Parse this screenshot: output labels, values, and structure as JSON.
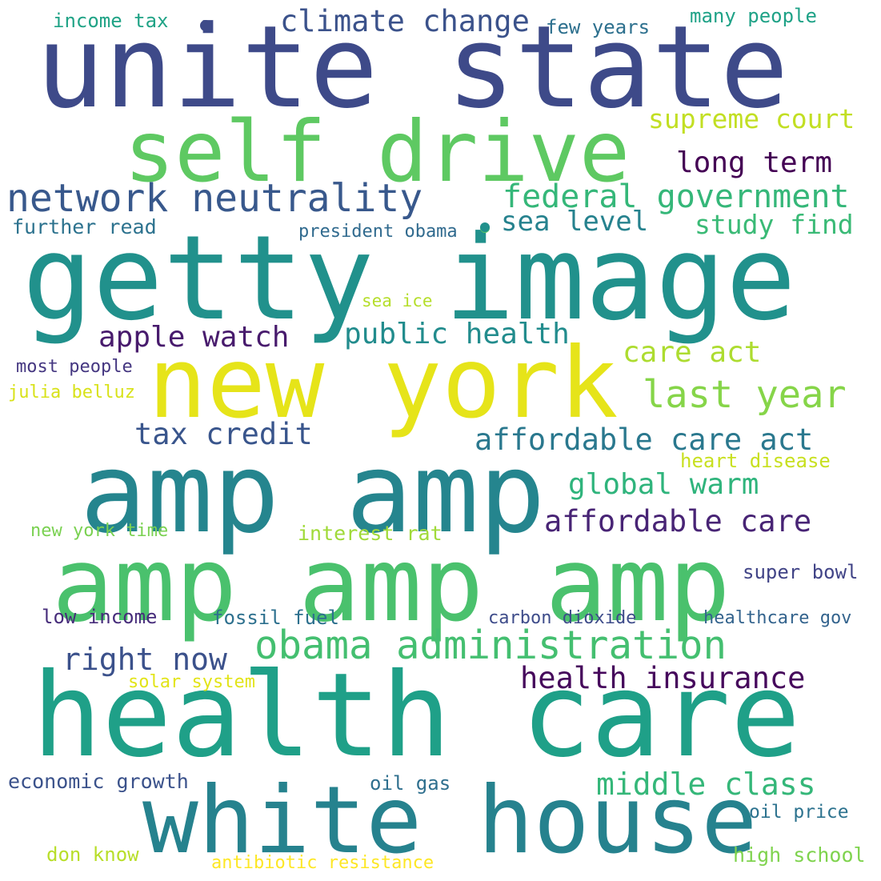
{
  "words": [
    {
      "text": "unite state",
      "color": "#3e4a89"
    },
    {
      "text": "self drive",
      "color": "#5ec962"
    },
    {
      "text": "getty image",
      "color": "#21918c"
    },
    {
      "text": "new york",
      "color": "#e6e419"
    },
    {
      "text": "amp amp",
      "color": "#25858e"
    },
    {
      "text": "amp amp amp",
      "color": "#4ac16d"
    },
    {
      "text": "health care",
      "color": "#1fa088"
    },
    {
      "text": "white house",
      "color": "#26828e"
    },
    {
      "text": "network neutrality",
      "color": "#38588c"
    },
    {
      "text": "climate change",
      "color": "#3b528b"
    },
    {
      "text": "federal government",
      "color": "#35b779"
    },
    {
      "text": "obama administration",
      "color": "#44bf70"
    },
    {
      "text": "affordable care act",
      "color": "#2a788e"
    },
    {
      "text": "last year",
      "color": "#86d549"
    },
    {
      "text": "supreme court",
      "color": "#c2df23"
    },
    {
      "text": "long term",
      "color": "#440154"
    },
    {
      "text": "sea level",
      "color": "#26828e"
    },
    {
      "text": "study find",
      "color": "#3aba76"
    },
    {
      "text": "public health",
      "color": "#228c8d"
    },
    {
      "text": "apple watch",
      "color": "#481b6d"
    },
    {
      "text": "care act",
      "color": "#addc30"
    },
    {
      "text": "tax credit",
      "color": "#39558c"
    },
    {
      "text": "global warm",
      "color": "#2fb47c"
    },
    {
      "text": "affordable care",
      "color": "#482475"
    },
    {
      "text": "right now",
      "color": "#3b518b"
    },
    {
      "text": "health insurance",
      "color": "#46085c"
    },
    {
      "text": "middle class",
      "color": "#35b779"
    },
    {
      "text": "income tax",
      "color": "#20a386"
    },
    {
      "text": "few years",
      "color": "#2d708e"
    },
    {
      "text": "many people",
      "color": "#1fa287"
    },
    {
      "text": "further read",
      "color": "#2c728e"
    },
    {
      "text": "president obama",
      "color": "#306a8e"
    },
    {
      "text": "sea ice",
      "color": "#b5de2b"
    },
    {
      "text": "most people",
      "color": "#453781"
    },
    {
      "text": "julia belluz",
      "color": "#d8e219"
    },
    {
      "text": "heart disease",
      "color": "#c8e020"
    },
    {
      "text": "new york time",
      "color": "#7ad151"
    },
    {
      "text": "interest rat",
      "color": "#a0da39"
    },
    {
      "text": "super bowl",
      "color": "#414487"
    },
    {
      "text": "low income",
      "color": "#472d7b"
    },
    {
      "text": "fossil fuel",
      "color": "#2d708e"
    },
    {
      "text": "carbon dioxide",
      "color": "#3e4c8a"
    },
    {
      "text": "healthcare gov",
      "color": "#33638d"
    },
    {
      "text": "solar system",
      "color": "#e2e418"
    },
    {
      "text": "economic growth",
      "color": "#3b528b"
    },
    {
      "text": "oil gas",
      "color": "#2e6f8e"
    },
    {
      "text": "oil price",
      "color": "#2c728e"
    },
    {
      "text": "don know",
      "color": "#b8de29"
    },
    {
      "text": "antibiotic resistance",
      "color": "#fde725"
    },
    {
      "text": "high school",
      "color": "#7fd34e"
    }
  ],
  "dots": [
    {
      "color": "#3e4a89"
    },
    {
      "color": "#5ec962"
    },
    {
      "color": "#21918c"
    }
  ]
}
